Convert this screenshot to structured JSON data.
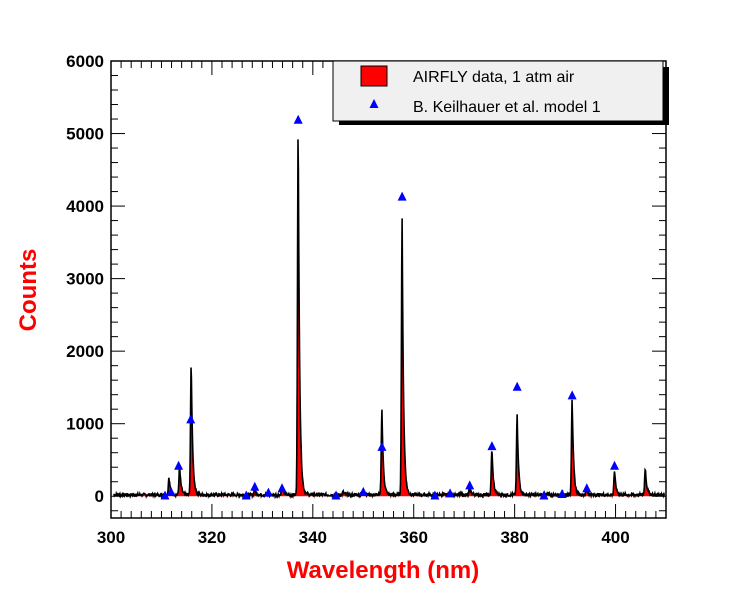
{
  "chart_data": {
    "type": "area",
    "xlabel": "Wavelength (nm)",
    "ylabel": "Counts",
    "xlim": [
      300,
      410
    ],
    "ylim": [
      -300,
      6000
    ],
    "x_ticks": [
      300,
      320,
      340,
      360,
      380,
      400
    ],
    "x_tick_labels": [
      "300",
      "320",
      "340",
      "360",
      "380",
      "400"
    ],
    "y_ticks": [
      0,
      1000,
      2000,
      3000,
      4000,
      5000,
      6000
    ],
    "y_tick_labels": [
      "0",
      "1000",
      "2000",
      "3000",
      "4000",
      "5000",
      "6000"
    ],
    "grid": false,
    "legend_position": "top-right",
    "series": [
      {
        "name": "AIRFLY data, 1 atm air",
        "kind": "filled-spectrum",
        "fill_color": "#ff0000",
        "line_color": "#000000",
        "baseline": 20,
        "peaks": [
          {
            "x": 311.5,
            "y": 270
          },
          {
            "x": 313.6,
            "y": 420
          },
          {
            "x": 315.9,
            "y": 1880
          },
          {
            "x": 328.5,
            "y": 110
          },
          {
            "x": 333.9,
            "y": 130
          },
          {
            "x": 337.1,
            "y": 5180
          },
          {
            "x": 346.0,
            "y": 60
          },
          {
            "x": 350.0,
            "y": 90
          },
          {
            "x": 353.7,
            "y": 1200
          },
          {
            "x": 357.7,
            "y": 3840
          },
          {
            "x": 367.2,
            "y": 60
          },
          {
            "x": 371.1,
            "y": 130
          },
          {
            "x": 375.5,
            "y": 660
          },
          {
            "x": 380.5,
            "y": 1110
          },
          {
            "x": 389.4,
            "y": 70
          },
          {
            "x": 391.4,
            "y": 1360
          },
          {
            "x": 394.3,
            "y": 100
          },
          {
            "x": 399.8,
            "y": 350
          },
          {
            "x": 405.9,
            "y": 400
          }
        ]
      },
      {
        "name": "B. Keilhauer et al. model 1",
        "kind": "markers",
        "marker": "triangle",
        "color": "#0000ff",
        "x": [
          310.7,
          311.9,
          313.4,
          315.8,
          326.8,
          328.5,
          331.2,
          333.9,
          337.1,
          344.6,
          350.0,
          353.7,
          357.7,
          364.2,
          367.2,
          371.1,
          375.5,
          380.5,
          385.8,
          389.4,
          391.4,
          394.3,
          399.8
        ],
        "y": [
          10,
          60,
          420,
          1060,
          10,
          130,
          50,
          110,
          5190,
          10,
          60,
          680,
          4130,
          10,
          40,
          150,
          690,
          1510,
          10,
          30,
          1390,
          110,
          420
        ]
      }
    ]
  }
}
